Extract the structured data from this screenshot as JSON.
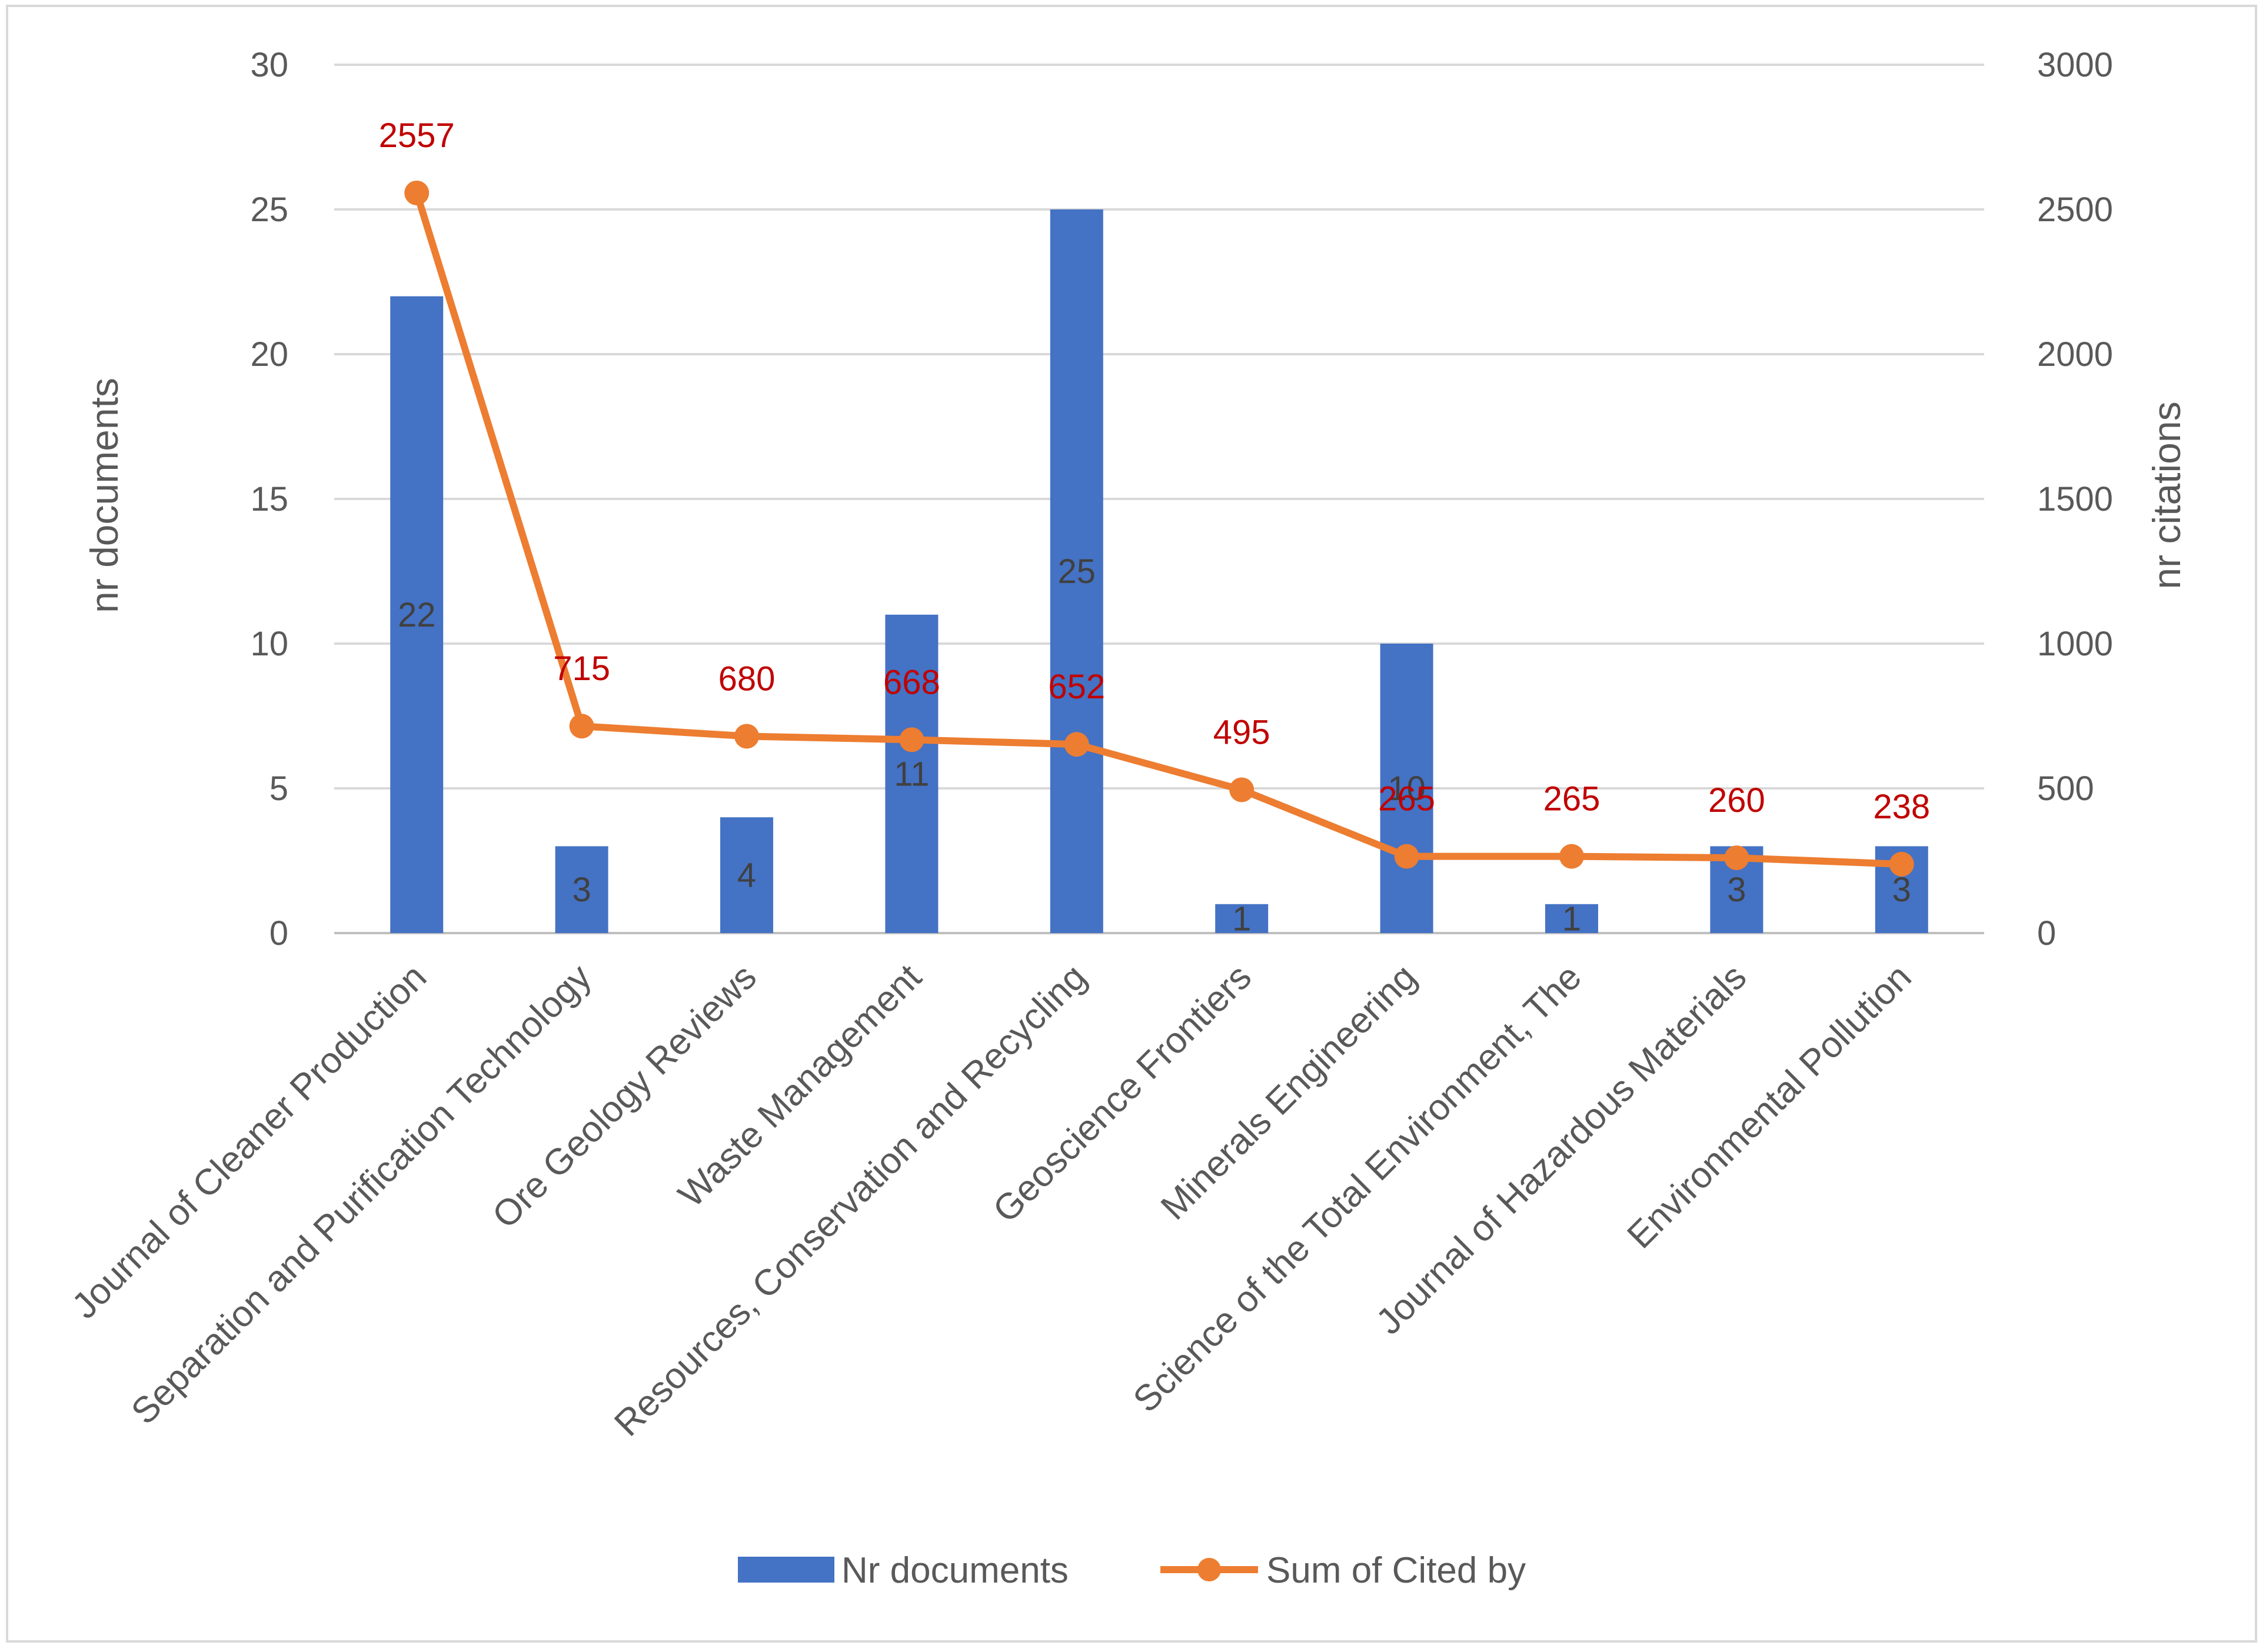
{
  "chart_data": {
    "type": "bar+line",
    "categories": [
      "Journal of Cleaner Production",
      "Separation and Purification Technology",
      "Ore Geology Reviews",
      "Waste Management",
      "Resources, Conservation and Recycling",
      "Geoscience Frontiers",
      "Minerals Engineering",
      "Science of the Total Environment, The",
      "Journal of Hazardous Materials",
      "Environmental Pollution"
    ],
    "series": [
      {
        "name": "Nr documents",
        "type": "bar",
        "axis": "left",
        "color": "#4472c4",
        "values": [
          22,
          3,
          4,
          11,
          25,
          1,
          10,
          1,
          3,
          3
        ],
        "labels": [
          "22",
          "3",
          "4",
          "11",
          "25",
          "1",
          "10",
          "1",
          "3",
          "3"
        ]
      },
      {
        "name": "Sum of Cited by",
        "type": "line",
        "axis": "right",
        "color": "#ed7d31",
        "label_color": "#c00000",
        "values": [
          2557,
          715,
          680,
          668,
          652,
          495,
          265,
          265,
          260,
          238
        ],
        "labels": [
          "2557",
          "715",
          "680",
          "668",
          "652",
          "495",
          "265",
          "265",
          "260",
          "238"
        ]
      }
    ],
    "ylabel_left": "nr documents",
    "ylabel_right": "nr citations",
    "ylim_left": [
      0,
      30
    ],
    "ylim_right": [
      0,
      3000
    ],
    "yticks_left": [
      "0",
      "5",
      "10",
      "15",
      "20",
      "25",
      "30"
    ],
    "yticks_right": [
      "0",
      "500",
      "1000",
      "1500",
      "2000",
      "2500",
      "3000"
    ],
    "grid": true,
    "legend_position": "bottom",
    "legend": [
      "Nr documents",
      "Sum of Cited by"
    ]
  }
}
